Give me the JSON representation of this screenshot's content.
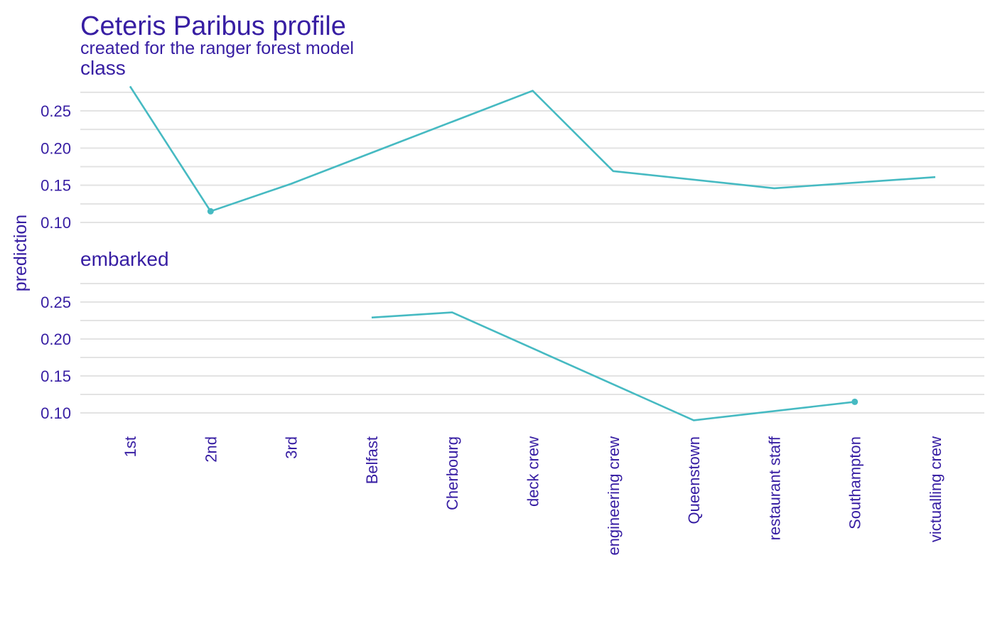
{
  "colors": {
    "text": "#371ea3",
    "grid": "#e3e3e3",
    "line": "#46bac2"
  },
  "chart_data": {
    "type": "line",
    "title": "Ceteris Paribus profile",
    "subtitle": "created for the ranger forest model",
    "ylabel": "prediction",
    "xlabel": "",
    "grid": true,
    "legend": "none",
    "categories": [
      "1st",
      "2nd",
      "3rd",
      "Belfast",
      "Cherbourg",
      "deck crew",
      "engineering crew",
      "Queenstown",
      "restaurant staff",
      "Southampton",
      "victualling crew"
    ],
    "yticks": [
      "0.10",
      "0.15",
      "0.20",
      "0.25"
    ],
    "ylim": [
      0.085,
      0.285
    ],
    "panels": [
      {
        "label": "class",
        "points": [
          {
            "category": "1st",
            "value": 0.283
          },
          {
            "category": "2nd",
            "value": 0.115
          },
          {
            "category": "3rd",
            "value": 0.152
          },
          {
            "category": "deck crew",
            "value": 0.277
          },
          {
            "category": "engineering crew",
            "value": 0.169
          },
          {
            "category": "restaurant staff",
            "value": 0.146
          },
          {
            "category": "victualling crew",
            "value": 0.161
          }
        ],
        "observed": {
          "category": "2nd",
          "value": 0.115
        }
      },
      {
        "label": "embarked",
        "points": [
          {
            "category": "Belfast",
            "value": 0.229
          },
          {
            "category": "Cherbourg",
            "value": 0.236
          },
          {
            "category": "Queenstown",
            "value": 0.09
          },
          {
            "category": "Southampton",
            "value": 0.115
          }
        ],
        "observed": {
          "category": "Southampton",
          "value": 0.115
        }
      }
    ]
  }
}
